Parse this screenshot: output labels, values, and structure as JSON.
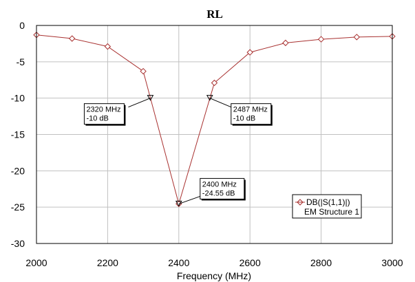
{
  "chart_data": {
    "type": "line",
    "title": "RL",
    "xlabel": "Frequency (MHz)",
    "ylabel": "",
    "xlim": [
      2000,
      3000
    ],
    "ylim": [
      -30,
      0
    ],
    "xticks": [
      2000,
      2200,
      2400,
      2600,
      2800,
      3000
    ],
    "yticks": [
      0,
      -5,
      -10,
      -15,
      -20,
      -25,
      -30
    ],
    "grid": true,
    "legend_position": "bottom-right",
    "series": [
      {
        "name": "DB(|S(1,1)|)",
        "subtitle": "EM Structure 1",
        "color": "#a8302f",
        "marker": "diamond",
        "x": [
          2000,
          2100,
          2200,
          2300,
          2400,
          2500,
          2600,
          2700,
          2800,
          2900,
          3000
        ],
        "y": [
          -1.3,
          -1.8,
          -2.9,
          -6.3,
          -24.55,
          -7.9,
          -3.7,
          -2.4,
          -1.9,
          -1.6,
          -1.5
        ]
      }
    ],
    "markers": [
      {
        "x": 2320,
        "y": -10,
        "label_freq": "2320 MHz",
        "label_val": "-10 dB",
        "side": "left"
      },
      {
        "x": 2487,
        "y": -10,
        "label_freq": "2487 MHz",
        "label_val": "-10 dB",
        "side": "right"
      },
      {
        "x": 2400,
        "y": -24.55,
        "label_freq": "2400 MHz",
        "label_val": "-24.55 dB",
        "side": "upper-right"
      }
    ]
  }
}
